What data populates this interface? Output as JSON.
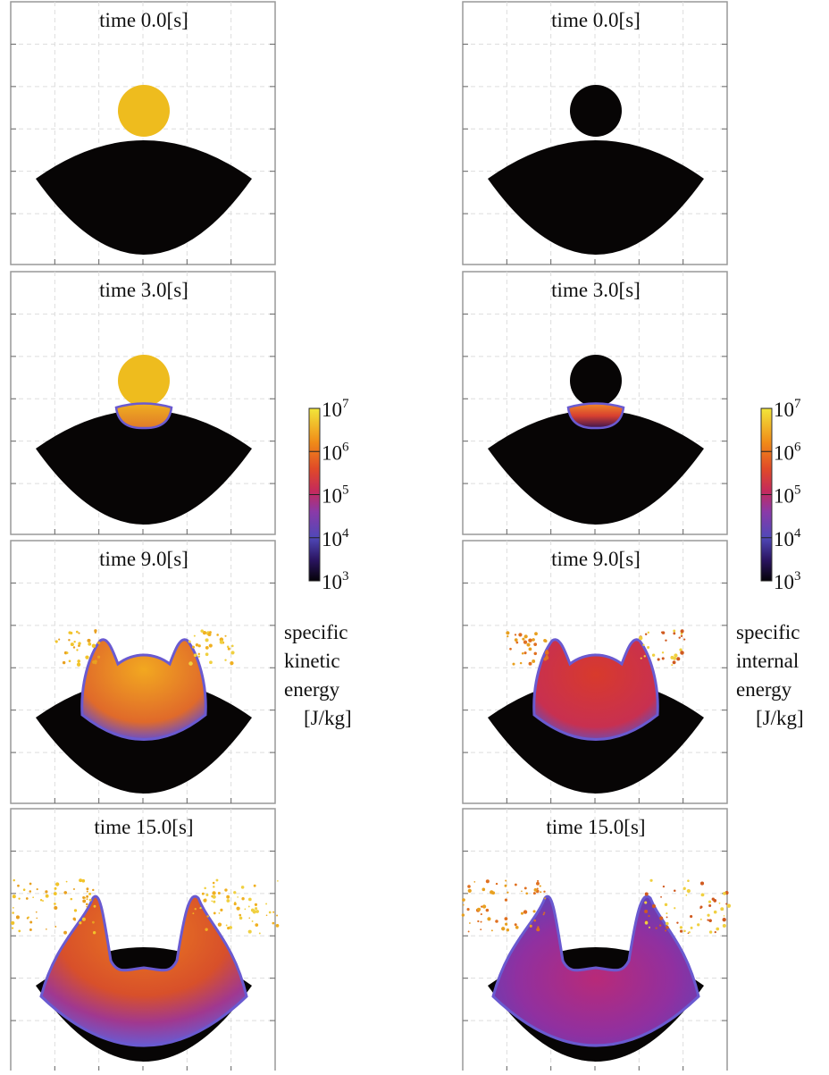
{
  "columns": [
    {
      "panels": [
        "time 0.0[s]",
        "time 3.0[s]",
        "time 9.0[s]",
        "time 15.0[s]"
      ],
      "colorbar": {
        "ticks": [
          {
            "value": 1000,
            "label": "10",
            "exponent": "3"
          },
          {
            "value": 10000,
            "label": "10",
            "exponent": "4"
          },
          {
            "value": 100000,
            "label": "10",
            "exponent": "5"
          },
          {
            "value": 1000000,
            "label": "10",
            "exponent": "6"
          },
          {
            "value": 10000000,
            "label": "10",
            "exponent": "7"
          }
        ],
        "label": [
          "specific",
          "kinetic",
          "energy",
          "[J/kg]"
        ]
      }
    },
    {
      "panels": [
        "time 0.0[s]",
        "time 3.0[s]",
        "time 9.0[s]",
        "time 15.0[s]"
      ],
      "colorbar": {
        "ticks": [
          {
            "value": 1000,
            "label": "10",
            "exponent": "3"
          },
          {
            "value": 10000,
            "label": "10",
            "exponent": "4"
          },
          {
            "value": 100000,
            "label": "10",
            "exponent": "5"
          },
          {
            "value": 1000000,
            "label": "10",
            "exponent": "6"
          },
          {
            "value": 10000000,
            "label": "10",
            "exponent": "7"
          }
        ],
        "label": [
          "specific",
          "internal",
          "energy",
          "[J/kg]"
        ]
      }
    }
  ]
}
